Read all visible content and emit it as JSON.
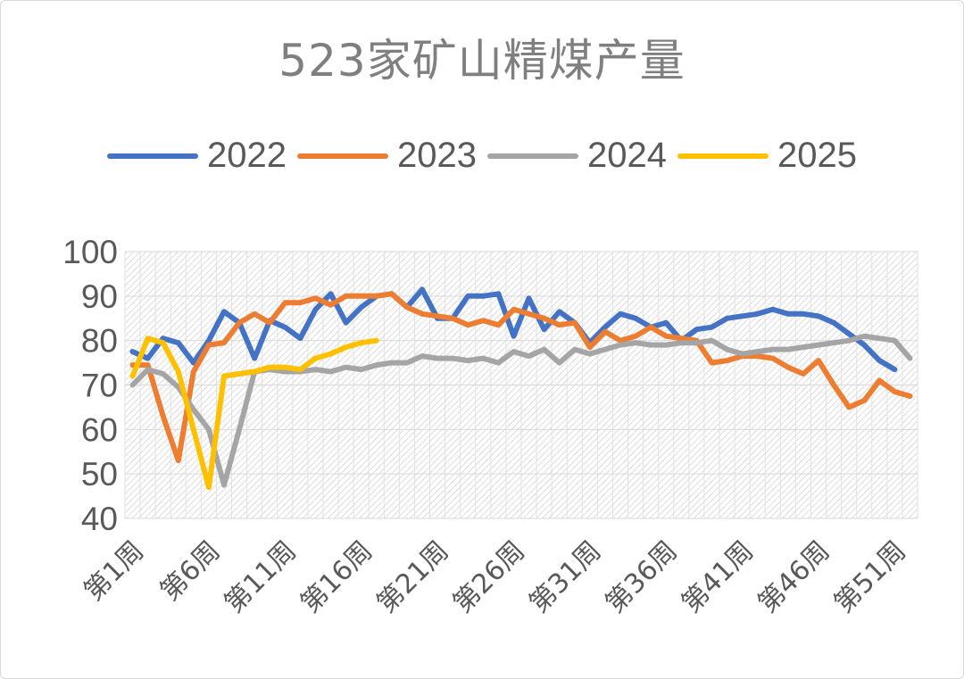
{
  "chart_data": {
    "type": "line",
    "title": "523家矿山精煤产量",
    "xlabel": "",
    "ylabel": "",
    "ylim": [
      40,
      100
    ],
    "yticks": [
      40,
      50,
      60,
      70,
      80,
      90,
      100
    ],
    "xtick_labels": [
      "第1周",
      "第6周",
      "第11周",
      "第16周",
      "第21周",
      "第26周",
      "第31周",
      "第36周",
      "第41周",
      "第46周",
      "第51周"
    ],
    "grid": true,
    "legend_position": "top",
    "series": [
      {
        "name": "2022",
        "color": "#4472C4",
        "values": [
          77.5,
          76.0,
          80.5,
          79.5,
          75.0,
          80.0,
          86.5,
          84.0,
          76.0,
          84.5,
          83.0,
          80.5,
          87.0,
          90.5,
          84.0,
          87.5,
          90.0,
          90.5,
          87.5,
          91.5,
          85.0,
          85.0,
          90.0,
          90.0,
          90.5,
          81.0,
          89.5,
          82.5,
          86.5,
          84.0,
          79.5,
          83.0,
          86.0,
          85.0,
          83.0,
          84.0,
          80.0,
          82.5,
          83.0,
          85.0,
          85.5,
          86.0,
          87.0,
          86.0,
          86.0,
          85.5,
          84.0,
          81.5,
          79.0,
          75.5,
          73.5
        ]
      },
      {
        "name": "2023",
        "color": "#ED7D31",
        "values": [
          74.5,
          74.5,
          63.0,
          53.0,
          73.0,
          79.0,
          79.5,
          84.0,
          86.0,
          84.0,
          88.5,
          88.5,
          89.5,
          88.0,
          90.0,
          90.0,
          90.0,
          90.5,
          87.5,
          86.0,
          85.5,
          85.0,
          83.5,
          84.5,
          83.5,
          87.0,
          86.0,
          85.0,
          83.5,
          84.0,
          78.5,
          82.0,
          80.0,
          81.0,
          83.0,
          81.0,
          80.5,
          80.0,
          75.0,
          75.5,
          76.5,
          76.5,
          76.0,
          74.0,
          72.5,
          75.5,
          70.0,
          65.0,
          66.5,
          71.0,
          68.5,
          67.5
        ]
      },
      {
        "name": "2024",
        "color": "#A5A5A5",
        "values": [
          70.0,
          73.5,
          72.5,
          69.5,
          64.5,
          60.0,
          47.5,
          60.0,
          73.0,
          73.5,
          73.0,
          73.0,
          73.5,
          73.0,
          74.0,
          73.5,
          74.5,
          75.0,
          75.0,
          76.5,
          76.0,
          76.0,
          75.5,
          76.0,
          75.0,
          77.5,
          76.5,
          78.0,
          75.0,
          78.0,
          77.0,
          78.0,
          79.0,
          79.5,
          79.0,
          79.0,
          79.5,
          79.5,
          80.0,
          78.0,
          77.0,
          77.5,
          78.0,
          78.0,
          78.5,
          79.0,
          79.5,
          80.0,
          81.0,
          80.5,
          80.0,
          76.0
        ]
      },
      {
        "name": "2025",
        "color": "#FFC000",
        "values": [
          72.0,
          80.5,
          79.5,
          73.0,
          60.0,
          47.0,
          72.0,
          72.5,
          73.0,
          74.0,
          74.0,
          73.5,
          76.0,
          77.0,
          78.5,
          79.5,
          80.0
        ]
      }
    ]
  }
}
